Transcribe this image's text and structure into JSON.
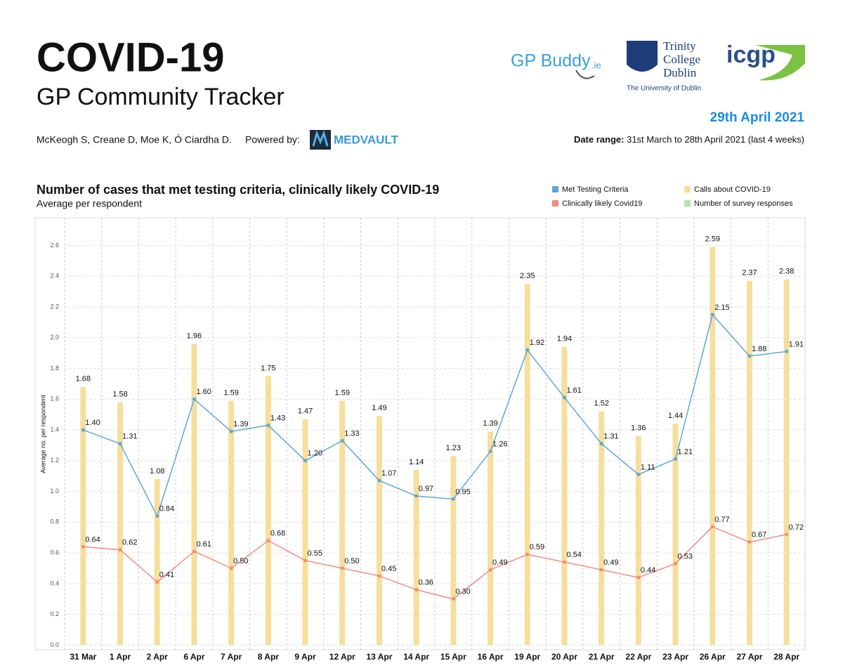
{
  "header": {
    "title": "COVID-19",
    "subtitle": "GP Community Tracker",
    "report_date": "29th April 2021",
    "authors": "McKeogh S, Creane D, Moe K, Ó Ciardha D.",
    "powered_by": "Powered by:",
    "powered_logo": "MEDVAULT",
    "date_range_label": "Date range:",
    "date_range": "31st March to 28th April 2021 (last 4 weeks)",
    "logos": {
      "gpbuddy": "GP Buddy",
      "gpbuddy_suffix": ".ie",
      "trinity": [
        "Trinity",
        "College",
        "Dublin"
      ],
      "trinity_sub": "The University of Dublin",
      "icgp": "icgp"
    }
  },
  "chart_data": {
    "type": "bar",
    "title": "Number of cases that met testing criteria, clinically likely COVID-19",
    "subtitle": "Average per respondent",
    "y_label": "Average no. per respondent",
    "categories": [
      "31 Mar",
      "1 Apr",
      "2 Apr",
      "6 Apr",
      "7 Apr",
      "8 Apr",
      "9 Apr",
      "12 Apr",
      "13 Apr",
      "14 Apr",
      "15 Apr",
      "16 Apr",
      "19 Apr",
      "20 Apr",
      "21 Apr",
      "22 Apr",
      "23 Apr",
      "26 Apr",
      "27 Apr",
      "28 Apr"
    ],
    "series": [
      {
        "name": "Calls about COVID-19",
        "type": "bar",
        "color": "#f6df9c",
        "values": [
          1.68,
          1.58,
          1.08,
          1.96,
          1.59,
          1.75,
          1.47,
          1.59,
          1.49,
          1.14,
          1.23,
          1.39,
          2.35,
          1.94,
          1.52,
          1.36,
          1.44,
          2.59,
          2.37,
          2.38
        ],
        "value_labels": [
          "1.68",
          "1.58",
          "1.08",
          "1.96",
          "1.59",
          "1.75",
          "1.47",
          "1.59",
          "1.49",
          "1.14",
          "1.23",
          "1.39",
          "2.35",
          "1.94",
          "1.52",
          "1.36",
          "1.44",
          "2.59",
          "2.37",
          "2.38"
        ]
      },
      {
        "name": "Met Testing Criteria",
        "type": "line",
        "color": "#5ba8dc",
        "values": [
          1.4,
          1.31,
          0.84,
          1.6,
          1.39,
          1.43,
          1.2,
          1.33,
          1.07,
          0.97,
          0.95,
          1.26,
          1.92,
          1.61,
          1.31,
          1.11,
          1.21,
          2.15,
          1.88,
          1.91
        ],
        "value_labels": [
          "1.40",
          "1.31",
          "0.84",
          "1.60",
          "1.39",
          "1.43",
          "1.20",
          "1.33",
          "1.07",
          "0.97",
          "0.95",
          "1.26",
          "1.92",
          "1.61",
          "1.31",
          "1.11",
          "1.21",
          "2.15",
          "1.88",
          "1.91"
        ]
      },
      {
        "name": "Clinically likely Covid19",
        "type": "line",
        "color": "#f08c84",
        "values": [
          0.64,
          0.62,
          0.41,
          0.61,
          0.5,
          0.68,
          0.55,
          0.5,
          0.45,
          0.36,
          0.3,
          0.49,
          0.59,
          0.54,
          0.49,
          0.44,
          0.53,
          0.77,
          0.67,
          0.72
        ],
        "value_labels": [
          "0.64",
          "0.62",
          "0.41",
          "0.61",
          "0.50",
          "0.68",
          "0.55",
          "0.50",
          "0.45",
          "0.36",
          "0.30",
          "0.49",
          "0.59",
          "0.54",
          "0.49",
          "0.44",
          "0.53",
          "0.77",
          "0.67",
          "0.72"
        ]
      }
    ],
    "legend_only": [
      {
        "name": "Number of survey responses",
        "color": "#b7e2b0"
      }
    ],
    "ylim": [
      -0.03,
      2.78
    ],
    "yticks": [
      {
        "value": 0,
        "label": "0.0"
      },
      0.2,
      0.4,
      0.6,
      0.8,
      {
        "value": 1,
        "label": "1.0"
      },
      1.2,
      1.4,
      1.6,
      1.8,
      {
        "value": 2,
        "label": "2.0"
      },
      2.2,
      2.4,
      2.6
    ],
    "grid": true
  }
}
